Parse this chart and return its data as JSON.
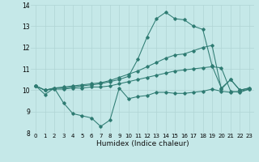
{
  "xlabel": "Humidex (Indice chaleur)",
  "xlim": [
    -0.5,
    23.5
  ],
  "ylim": [
    8,
    14
  ],
  "yticks": [
    8,
    9,
    10,
    11,
    12,
    13,
    14
  ],
  "xticks": [
    0,
    1,
    2,
    3,
    4,
    5,
    6,
    7,
    8,
    9,
    10,
    11,
    12,
    13,
    14,
    15,
    16,
    17,
    18,
    19,
    20,
    21,
    22,
    23
  ],
  "bg_color": "#c5e8e8",
  "grid_color": "#b0d4d4",
  "line_color": "#2e7b72",
  "line1_y": [
    10.2,
    9.8,
    10.1,
    9.4,
    8.9,
    8.8,
    8.7,
    8.3,
    8.6,
    10.1,
    9.6,
    9.7,
    9.75,
    9.9,
    9.9,
    9.85,
    9.85,
    9.9,
    9.95,
    10.05,
    9.95,
    9.9,
    9.95,
    10.05
  ],
  "line2_y": [
    10.2,
    10.0,
    10.05,
    10.05,
    10.1,
    10.1,
    10.15,
    10.15,
    10.2,
    10.3,
    10.4,
    10.5,
    10.6,
    10.7,
    10.8,
    10.9,
    10.95,
    11.0,
    11.05,
    11.1,
    11.05,
    9.95,
    9.9,
    10.05
  ],
  "line3_y": [
    10.2,
    10.0,
    10.1,
    10.15,
    10.2,
    10.25,
    10.3,
    10.35,
    10.45,
    10.6,
    10.75,
    10.9,
    11.1,
    11.3,
    11.5,
    11.65,
    11.7,
    11.85,
    12.0,
    12.1,
    10.05,
    10.5,
    10.0,
    10.1
  ],
  "line4_y": [
    10.2,
    10.0,
    10.1,
    10.1,
    10.15,
    10.2,
    10.25,
    10.3,
    10.4,
    10.5,
    10.65,
    11.45,
    12.5,
    13.35,
    13.65,
    13.35,
    13.3,
    13.0,
    12.85,
    11.15,
    10.1,
    10.5,
    10.0,
    10.1
  ]
}
